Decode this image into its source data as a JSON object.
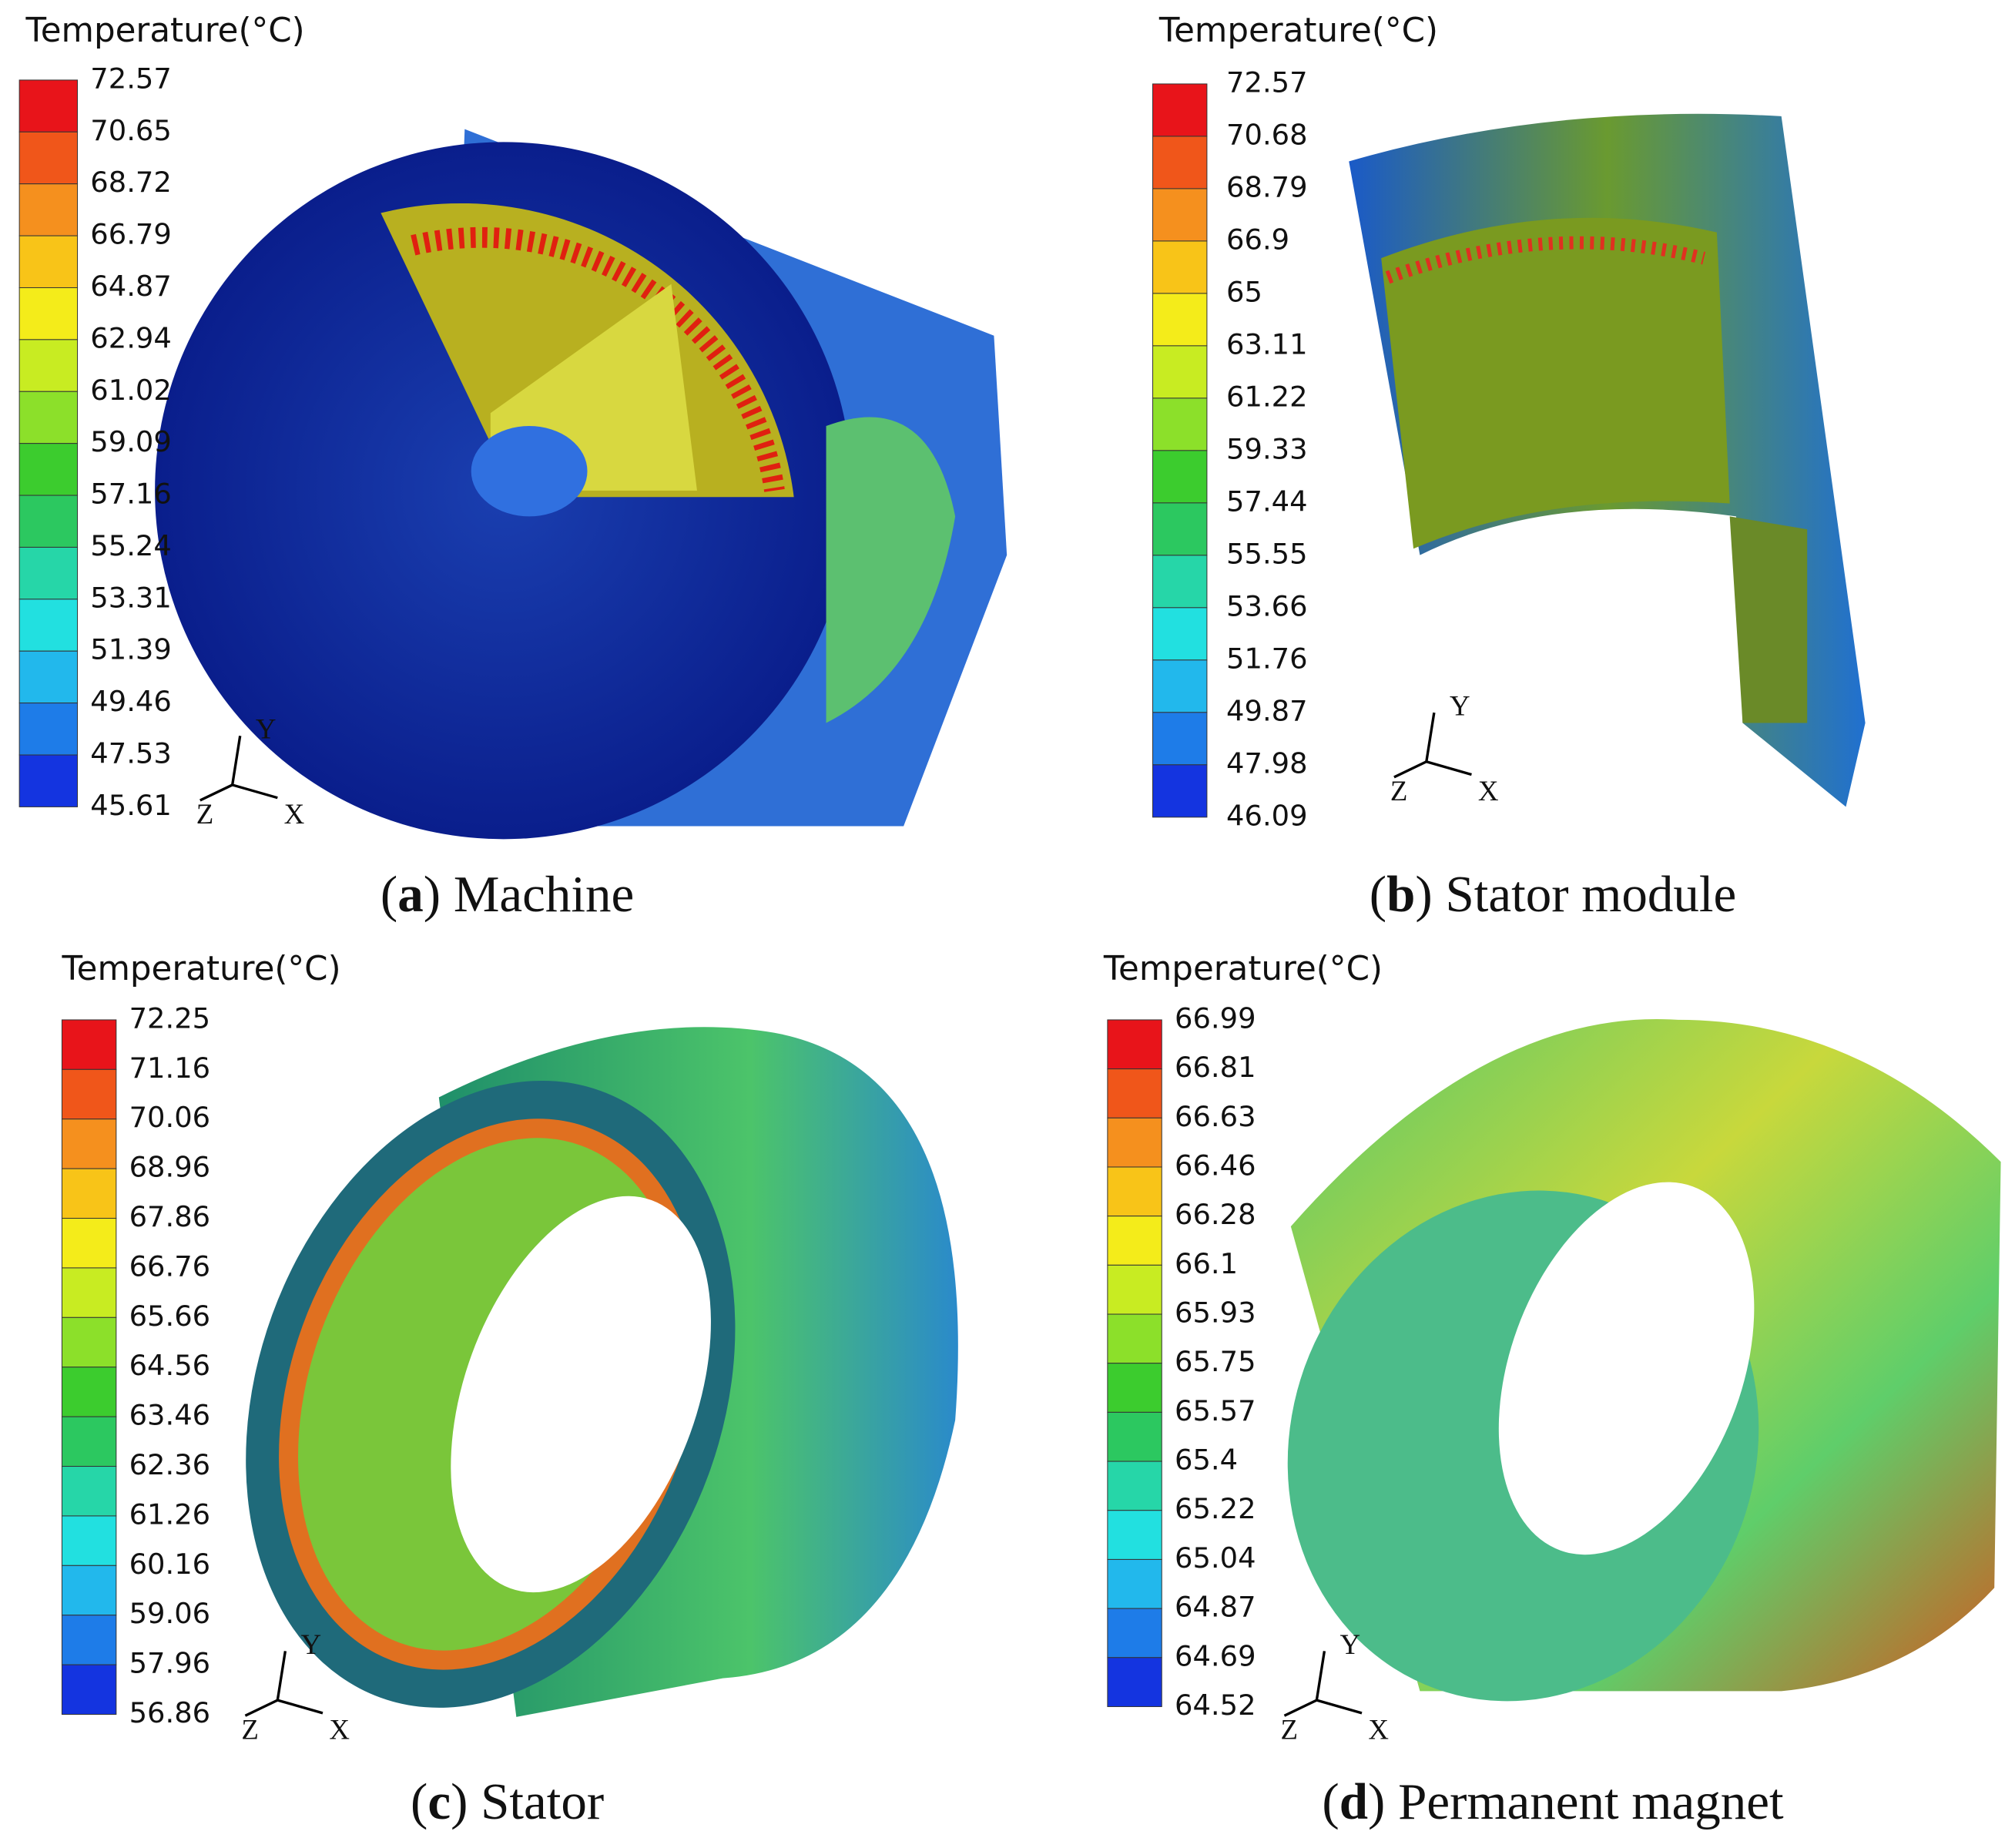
{
  "panels": [
    {
      "legend_title": "Temperature(°C)",
      "legend_labels": [
        "72.57",
        "70.65",
        "68.72",
        "66.79",
        "64.87",
        "62.94",
        "61.02",
        "59.09",
        "57.16",
        "55.24",
        "53.31",
        "51.39",
        "49.46",
        "47.53",
        "45.61"
      ],
      "axes": [
        "Y",
        "Z",
        "X"
      ],
      "caption": [
        "(",
        "a",
        ") Machine"
      ]
    },
    {
      "legend_title": "Temperature(°C)",
      "legend_labels": [
        "72.57",
        "70.68",
        "68.79",
        "66.9",
        "65",
        "63.11",
        "61.22",
        "59.33",
        "57.44",
        "55.55",
        "53.66",
        "51.76",
        "49.87",
        "47.98",
        "46.09"
      ],
      "axes": [
        "Y",
        "Z",
        "X"
      ],
      "caption": [
        "(",
        "b",
        ") Stator module"
      ]
    },
    {
      "legend_title": "Temperature(°C)",
      "legend_labels": [
        "72.25",
        "71.16",
        "70.06",
        "68.96",
        "67.86",
        "66.76",
        "65.66",
        "64.56",
        "63.46",
        "62.36",
        "61.26",
        "60.16",
        "59.06",
        "57.96",
        "56.86"
      ],
      "axes": [
        "Y",
        "Z",
        "X"
      ],
      "caption": [
        "(",
        "c",
        ") Stator"
      ]
    },
    {
      "legend_title": "Temperature(°C)",
      "legend_labels": [
        "66.99",
        "66.81",
        "66.63",
        "66.46",
        "66.28",
        "66.1",
        "65.93",
        "65.75",
        "65.57",
        "65.4",
        "65.22",
        "65.04",
        "64.87",
        "64.69",
        "64.52"
      ],
      "axes": [
        "Y",
        "Z",
        "X"
      ],
      "caption": [
        "(",
        "d",
        ") Permanent magnet"
      ]
    }
  ]
}
